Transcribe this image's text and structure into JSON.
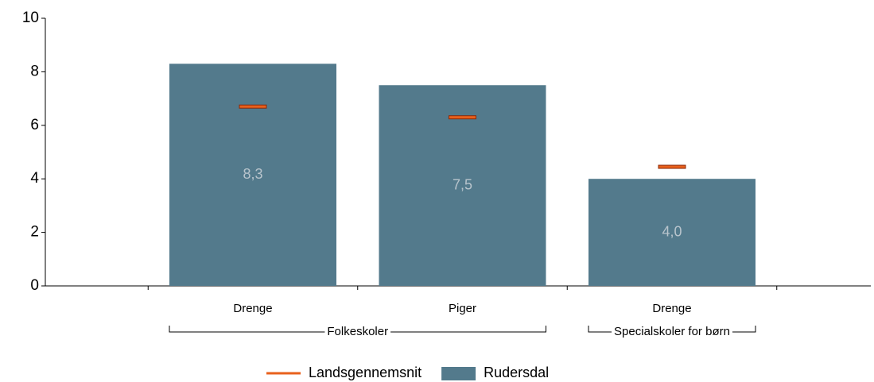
{
  "chart_data": {
    "type": "bar",
    "categories": [
      "Drenge",
      "Piger",
      "Drenge"
    ],
    "groups": [
      {
        "name": "Folkeskoler",
        "start": 0,
        "end": 1
      },
      {
        "name": "Specialskoler for børn",
        "start": 2,
        "end": 2
      }
    ],
    "series": [
      {
        "name": "Landsgennemsnit",
        "color": "#e8601c",
        "kind": "marker",
        "values": [
          6.7,
          6.3,
          4.45
        ]
      },
      {
        "name": "Rudersdal",
        "color": "#537a8c",
        "kind": "bar",
        "values": [
          8.3,
          7.5,
          4.0
        ],
        "value_labels": [
          "8,3",
          "7,5",
          "4,0"
        ]
      }
    ],
    "ylim": [
      0,
      10
    ],
    "yticks": [
      0,
      2,
      4,
      6,
      8,
      10
    ]
  }
}
